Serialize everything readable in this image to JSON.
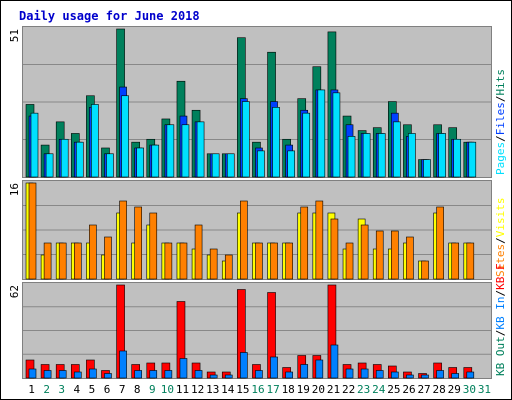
{
  "title": "Daily usage for June 2018",
  "colors": {
    "background": "#ffffff",
    "panel": "#c0c0c0",
    "grid": "#888888",
    "title": "#0000cc",
    "hits": "#00805c",
    "files": "#0040ff",
    "pages": "#00e0ff",
    "visits": "#ffff00",
    "sites": "#ff8000",
    "kb_in": "#ff0000",
    "kb_out": "#0080ff",
    "weekday_label": "#000000",
    "weekend_label": "#00805c"
  },
  "chart_data": [
    {
      "type": "bar",
      "title": "Hits / Files / Pages",
      "max_label": "51",
      "ylim": [
        0,
        51
      ],
      "legend": [
        {
          "text": "Pages",
          "color": "#00e0ff"
        },
        {
          "text": "Files",
          "color": "#0040ff"
        },
        {
          "text": "Hits",
          "color": "#00805c"
        }
      ],
      "categories": [
        "1",
        "2",
        "3",
        "4",
        "5",
        "6",
        "7",
        "8",
        "9",
        "10",
        "11",
        "12",
        "13",
        "14",
        "15",
        "16",
        "17",
        "18",
        "19",
        "20",
        "21",
        "22",
        "23",
        "24",
        "25",
        "26",
        "27",
        "28",
        "29",
        "30",
        "31"
      ],
      "series": [
        {
          "name": "Hits",
          "color": "#00805c",
          "values": [
            25,
            11,
            19,
            15,
            28,
            10,
            51,
            12,
            13,
            20,
            33,
            23,
            8,
            8,
            48,
            12,
            43,
            13,
            27,
            38,
            50,
            21,
            16,
            17,
            26,
            18,
            6,
            18,
            17,
            12,
            0
          ]
        },
        {
          "name": "Files",
          "color": "#0040ff",
          "values": [
            21,
            8,
            13,
            12,
            24,
            8,
            31,
            10,
            11,
            18,
            21,
            19,
            8,
            8,
            27,
            10,
            26,
            11,
            23,
            30,
            30,
            18,
            15,
            15,
            22,
            14,
            6,
            15,
            13,
            12,
            0
          ]
        },
        {
          "name": "Pages",
          "color": "#00e0ff",
          "values": [
            22,
            8,
            13,
            12,
            25,
            8,
            28,
            10,
            11,
            18,
            18,
            19,
            8,
            8,
            26,
            9,
            24,
            9,
            22,
            30,
            29,
            14,
            15,
            15,
            19,
            15,
            6,
            15,
            13,
            12,
            0
          ]
        }
      ]
    },
    {
      "type": "bar",
      "title": "Visits / Sites",
      "max_label": "16",
      "ylim": [
        0,
        16
      ],
      "legend": [
        {
          "text": "Sites",
          "color": "#ff8000"
        },
        {
          "text": "Visits",
          "color": "#ffff00"
        }
      ],
      "categories": [
        "1",
        "2",
        "3",
        "4",
        "5",
        "6",
        "7",
        "8",
        "9",
        "10",
        "11",
        "12",
        "13",
        "14",
        "15",
        "16",
        "17",
        "18",
        "19",
        "20",
        "21",
        "22",
        "23",
        "24",
        "25",
        "26",
        "27",
        "28",
        "29",
        "30",
        "31"
      ],
      "series": [
        {
          "name": "Visits",
          "color": "#ffff00",
          "values": [
            16,
            4,
            6,
            6,
            6,
            4,
            11,
            6,
            9,
            6,
            6,
            5,
            4,
            3,
            11,
            6,
            6,
            6,
            11,
            11,
            11,
            5,
            10,
            5,
            5,
            6,
            3,
            11,
            6,
            6,
            0
          ]
        },
        {
          "name": "Sites",
          "color": "#ff8000",
          "values": [
            16,
            6,
            6,
            6,
            9,
            7,
            13,
            12,
            11,
            6,
            6,
            9,
            5,
            4,
            13,
            6,
            6,
            6,
            12,
            13,
            10,
            6,
            9,
            8,
            8,
            7,
            3,
            12,
            6,
            6,
            0
          ]
        }
      ]
    },
    {
      "type": "bar",
      "title": "KB F / KB In / KB Out",
      "max_label": "62",
      "ylim": [
        0,
        62
      ],
      "legend": [
        {
          "text": "KB Out",
          "color": "#00805c"
        },
        {
          "text": "KB In",
          "color": "#0080ff"
        },
        {
          "text": "KB F",
          "color": "#ff0000"
        }
      ],
      "categories": [
        "1",
        "2",
        "3",
        "4",
        "5",
        "6",
        "7",
        "8",
        "9",
        "10",
        "11",
        "12",
        "13",
        "14",
        "15",
        "16",
        "17",
        "18",
        "19",
        "20",
        "21",
        "22",
        "23",
        "24",
        "25",
        "26",
        "27",
        "28",
        "29",
        "30",
        "31"
      ],
      "series": [
        {
          "name": "KB F",
          "color": "#ff0000",
          "values": [
            12,
            9,
            9,
            9,
            12,
            5,
            62,
            9,
            10,
            10,
            51,
            10,
            4,
            4,
            59,
            9,
            57,
            7,
            15,
            15,
            62,
            9,
            10,
            9,
            8,
            4,
            3,
            10,
            7,
            7,
            0
          ]
        },
        {
          "name": "KB In",
          "color": "#0080ff",
          "values": [
            6,
            5,
            5,
            4,
            6,
            3,
            18,
            5,
            5,
            5,
            13,
            5,
            2,
            2,
            17,
            5,
            14,
            4,
            9,
            12,
            22,
            6,
            6,
            5,
            4,
            2,
            2,
            5,
            3,
            4,
            0
          ]
        }
      ]
    }
  ],
  "day_labels": [
    {
      "text": "1",
      "weekend": false
    },
    {
      "text": "2",
      "weekend": true
    },
    {
      "text": "3",
      "weekend": true
    },
    {
      "text": "4",
      "weekend": false
    },
    {
      "text": "5",
      "weekend": false
    },
    {
      "text": "6",
      "weekend": false
    },
    {
      "text": "7",
      "weekend": false
    },
    {
      "text": "8",
      "weekend": false
    },
    {
      "text": "9",
      "weekend": true
    },
    {
      "text": "10",
      "weekend": true
    },
    {
      "text": "11",
      "weekend": false
    },
    {
      "text": "12",
      "weekend": false
    },
    {
      "text": "13",
      "weekend": false
    },
    {
      "text": "14",
      "weekend": false
    },
    {
      "text": "15",
      "weekend": false
    },
    {
      "text": "16",
      "weekend": true
    },
    {
      "text": "17",
      "weekend": true
    },
    {
      "text": "18",
      "weekend": false
    },
    {
      "text": "19",
      "weekend": false
    },
    {
      "text": "20",
      "weekend": false
    },
    {
      "text": "21",
      "weekend": false
    },
    {
      "text": "22",
      "weekend": false
    },
    {
      "text": "23",
      "weekend": true
    },
    {
      "text": "24",
      "weekend": true
    },
    {
      "text": "25",
      "weekend": false
    },
    {
      "text": "26",
      "weekend": false
    },
    {
      "text": "27",
      "weekend": false
    },
    {
      "text": "28",
      "weekend": false
    },
    {
      "text": "29",
      "weekend": false
    },
    {
      "text": "30",
      "weekend": true
    },
    {
      "text": "31",
      "weekend": true
    }
  ]
}
